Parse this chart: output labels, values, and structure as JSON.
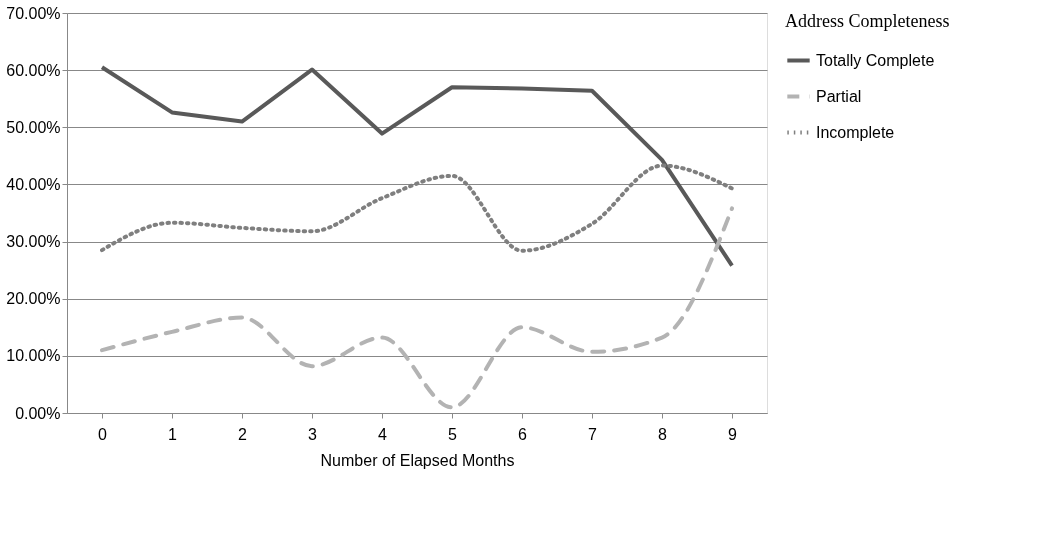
{
  "chart_data": {
    "type": "line",
    "xlabel": "Number of Elapsed Months",
    "legend_title": "Address Completeness",
    "categories": [
      "0",
      "1",
      "2",
      "3",
      "4",
      "5",
      "6",
      "7",
      "8",
      "9"
    ],
    "series": [
      {
        "name": "Totally Complete",
        "color": "#595959",
        "line_style": "solid",
        "values": [
          60.5,
          52.6,
          51.0,
          60.1,
          48.9,
          57.0,
          56.8,
          56.4,
          44.3,
          25.8
        ]
      },
      {
        "name": "Partial",
        "color": "#b3b3b3",
        "line_style": "dashed",
        "values": [
          11.0,
          14.2,
          16.7,
          8.2,
          13.2,
          1.0,
          15.0,
          10.7,
          13.2,
          35.8
        ]
      },
      {
        "name": "Incomplete",
        "color": "#7f7f7f",
        "line_style": "dotted",
        "values": [
          28.5,
          33.3,
          32.4,
          31.8,
          37.6,
          41.5,
          28.4,
          33.1,
          43.3,
          39.3
        ]
      }
    ],
    "ylim": [
      0,
      70
    ],
    "yticks": [
      {
        "value": 0,
        "label": "0.00%"
      },
      {
        "value": 10,
        "label": "10.00%"
      },
      {
        "value": 20,
        "label": "20.00%"
      },
      {
        "value": 30,
        "label": "30.00%"
      },
      {
        "value": 40,
        "label": "40.00%"
      },
      {
        "value": 50,
        "label": "50.00%"
      },
      {
        "value": 60,
        "label": "60.00%"
      },
      {
        "value": 70,
        "label": "70.00%"
      }
    ],
    "grid": "y",
    "legend": "right",
    "marker": "none"
  }
}
